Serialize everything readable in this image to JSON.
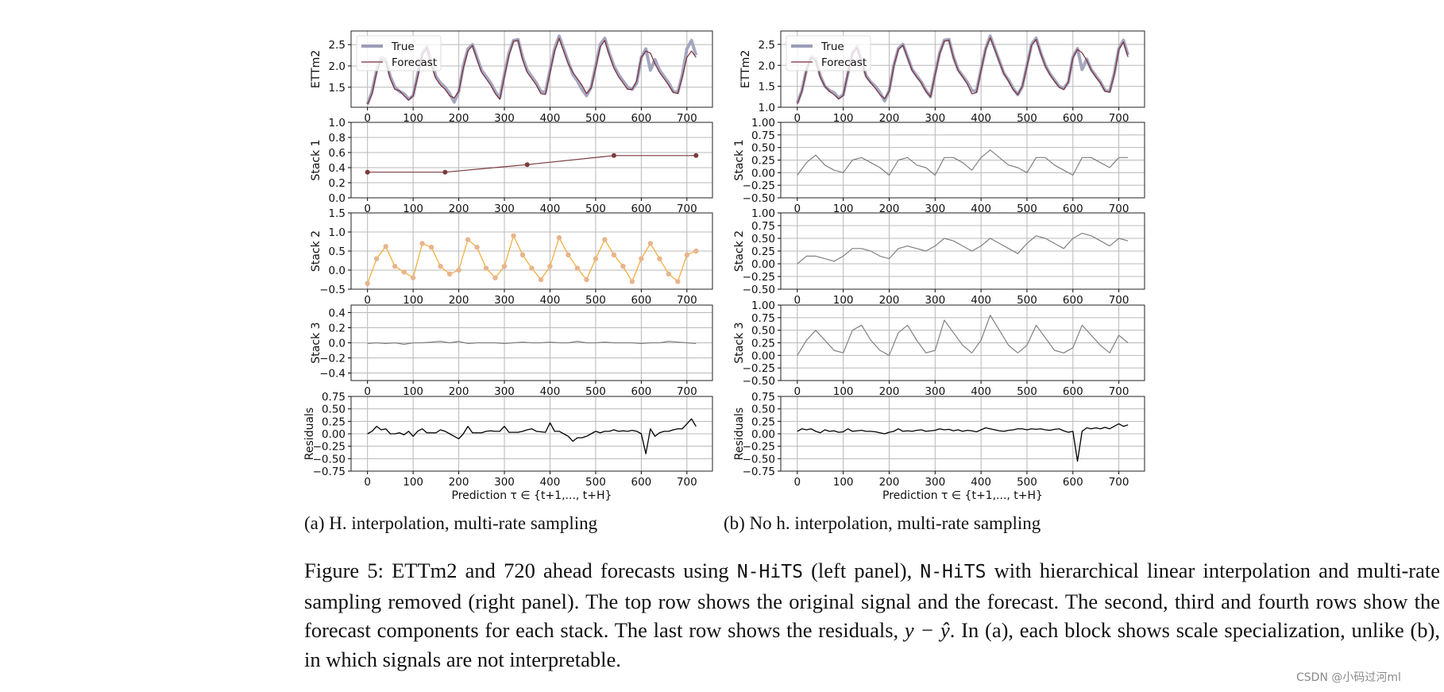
{
  "colors": {
    "true": "#9b9db9",
    "forecast": "#7a2f37",
    "stack1": "#7b3a3c",
    "stack2_line": "#f6a832",
    "stack2_marker": "#e6b58e",
    "stack_gray": "#808080",
    "residual": "#000000",
    "grid": "#b8b8b8"
  },
  "chart_data": [
    {
      "panel": "a",
      "row": 1,
      "type": "line",
      "ylabel": "ETTm2",
      "yticks": [
        "1.5",
        "2.0",
        "2.5"
      ],
      "ylim": [
        1.03,
        2.82
      ],
      "xlim": [
        -36,
        756
      ],
      "xticks": [
        "0",
        "100",
        "200",
        "300",
        "400",
        "500",
        "600",
        "700"
      ],
      "grid": true,
      "legend": "top-left",
      "series": [
        {
          "name": "True",
          "x_step": 10,
          "values": [
            1.1,
            1.4,
            1.9,
            2.2,
            2.15,
            1.75,
            1.5,
            1.4,
            1.35,
            1.22,
            1.3,
            1.8,
            2.3,
            2.45,
            2.1,
            1.75,
            1.6,
            1.5,
            1.35,
            1.15,
            1.4,
            2.0,
            2.4,
            2.5,
            2.2,
            1.9,
            1.75,
            1.6,
            1.4,
            1.25,
            1.8,
            2.3,
            2.6,
            2.62,
            2.2,
            1.9,
            1.75,
            1.6,
            1.4,
            1.38,
            1.9,
            2.4,
            2.7,
            2.4,
            2.1,
            1.8,
            1.65,
            1.45,
            1.3,
            1.5,
            2.0,
            2.5,
            2.65,
            2.3,
            2.0,
            1.8,
            1.65,
            1.5,
            1.45,
            1.6,
            2.2,
            2.4,
            1.9,
            2.15,
            1.9,
            1.75,
            1.6,
            1.4,
            1.38,
            1.8,
            2.4,
            2.6,
            2.25
          ]
        },
        {
          "name": "Forecast",
          "x_step": 10,
          "values": [
            1.1,
            1.35,
            1.85,
            2.15,
            2.1,
            1.7,
            1.45,
            1.42,
            1.3,
            1.2,
            1.3,
            1.75,
            2.25,
            2.42,
            2.0,
            1.7,
            1.55,
            1.45,
            1.3,
            1.25,
            1.4,
            1.95,
            2.35,
            2.48,
            2.15,
            1.85,
            1.7,
            1.55,
            1.35,
            1.22,
            1.75,
            2.25,
            2.58,
            2.6,
            2.15,
            1.85,
            1.7,
            1.55,
            1.35,
            1.33,
            1.85,
            2.35,
            2.65,
            2.35,
            2.05,
            1.85,
            1.7,
            1.55,
            1.35,
            1.48,
            1.95,
            2.45,
            2.6,
            2.25,
            1.95,
            1.75,
            1.6,
            1.45,
            1.45,
            1.65,
            2.2,
            2.35,
            2.3,
            2.05,
            1.85,
            1.7,
            1.55,
            1.38,
            1.35,
            1.75,
            2.2,
            2.35,
            2.2
          ]
        }
      ]
    },
    {
      "panel": "a",
      "row": 2,
      "type": "line",
      "ylabel": "Stack 1",
      "yticks": [
        "0.0",
        "0.2",
        "0.4",
        "0.6",
        "0.8",
        "1.0"
      ],
      "ylim": [
        0,
        1
      ],
      "xlim": [
        -36,
        756
      ],
      "xticks": [
        "0",
        "100",
        "200",
        "300",
        "400",
        "500",
        "600",
        "700"
      ],
      "grid": true,
      "series": [
        {
          "x": [
            0,
            170,
            350,
            540,
            720
          ],
          "values": [
            0.34,
            0.34,
            0.44,
            0.56,
            0.56
          ],
          "markers": true
        }
      ]
    },
    {
      "panel": "a",
      "row": 3,
      "type": "line",
      "ylabel": "Stack 2",
      "yticks": [
        "−0.5",
        "0.0",
        "0.5",
        "1.0",
        "1.5"
      ],
      "ylim": [
        -0.5,
        1.5
      ],
      "xlim": [
        -36,
        756
      ],
      "xticks": [
        "0",
        "100",
        "200",
        "300",
        "400",
        "500",
        "600",
        "700"
      ],
      "grid": true,
      "series": [
        {
          "x_step": 20,
          "markers": true,
          "values": [
            -0.35,
            0.3,
            0.62,
            0.1,
            -0.05,
            -0.2,
            0.7,
            0.6,
            0.1,
            -0.1,
            0.0,
            0.8,
            0.6,
            0.05,
            -0.2,
            0.1,
            0.9,
            0.4,
            0.05,
            -0.25,
            0.1,
            0.85,
            0.4,
            0.05,
            -0.25,
            0.3,
            0.8,
            0.4,
            0.1,
            -0.3,
            0.3,
            0.7,
            0.3,
            -0.1,
            -0.3,
            0.4,
            0.5
          ]
        }
      ]
    },
    {
      "panel": "a",
      "row": 4,
      "type": "line",
      "ylabel": "Stack 3",
      "yticks": [
        "−0.4",
        "−0.2",
        "0.0",
        "0.2",
        "0.4"
      ],
      "ylim": [
        -0.5,
        0.5
      ],
      "xlim": [
        -36,
        756
      ],
      "xticks": [
        "0",
        "100",
        "200",
        "300",
        "400",
        "500",
        "600",
        "700"
      ],
      "grid": true,
      "series": [
        {
          "x_step": 20,
          "values": [
            -0.01,
            0.0,
            -0.01,
            0.0,
            -0.02,
            0.0,
            0.0,
            0.01,
            0.02,
            0.0,
            0.02,
            -0.01,
            0.0,
            0.0,
            0.0,
            -0.01,
            0.0,
            0.01,
            0.0,
            0.0,
            0.01,
            0.0,
            0.0,
            0.02,
            0.0,
            0.0,
            0.01,
            0.0,
            0.0,
            0.0,
            -0.01,
            0.0,
            0.0,
            0.02,
            0.01,
            0.0,
            -0.01
          ]
        }
      ]
    },
    {
      "panel": "a",
      "row": 5,
      "type": "line",
      "ylabel": "Residuals",
      "xlabel": "Prediction τ ∈ {t+1,..., t+H}",
      "yticks": [
        "−0.75",
        "−0.50",
        "−0.25",
        "0.00",
        "0.25",
        "0.50",
        "0.75"
      ],
      "ylim": [
        -0.75,
        0.75
      ],
      "xlim": [
        -36,
        756
      ],
      "xticks": [
        "0",
        "100",
        "200",
        "300",
        "400",
        "500",
        "600",
        "700"
      ],
      "grid": true,
      "series": [
        {
          "x_step": 10,
          "values": [
            0.0,
            0.05,
            0.15,
            0.08,
            0.1,
            0.0,
            0.0,
            0.02,
            -0.02,
            0.05,
            -0.05,
            0.05,
            0.1,
            0.02,
            0.02,
            0.02,
            0.08,
            0.05,
            0.0,
            -0.05,
            -0.1,
            0.0,
            0.15,
            0.02,
            0.02,
            0.02,
            0.05,
            0.06,
            0.05,
            0.05,
            0.15,
            0.03,
            0.03,
            0.03,
            0.05,
            0.08,
            0.1,
            0.05,
            0.04,
            0.03,
            0.22,
            0.05,
            0.05,
            0.0,
            -0.05,
            -0.15,
            -0.08,
            -0.08,
            -0.05,
            0.0,
            0.05,
            0.02,
            0.05,
            0.05,
            0.08,
            0.05,
            0.06,
            0.05,
            0.07,
            0.05,
            0.0,
            -0.4,
            0.1,
            -0.05,
            0.02,
            0.05,
            0.05,
            0.08,
            0.1,
            0.1,
            0.2,
            0.3,
            0.15
          ]
        }
      ]
    },
    {
      "panel": "b",
      "row": 1,
      "type": "line",
      "ylabel": "ETTm2",
      "yticks": [
        "1.0",
        "1.5",
        "2.0",
        "2.5"
      ],
      "ylim": [
        1.0,
        2.82
      ],
      "xlim": [
        -36,
        756
      ],
      "xticks": [
        "0",
        "100",
        "200",
        "300",
        "400",
        "500",
        "600",
        "700"
      ],
      "grid": true,
      "legend": "top-left",
      "series": [
        {
          "name": "True",
          "x_step": 10,
          "values": [
            1.1,
            1.4,
            1.9,
            2.2,
            2.15,
            1.75,
            1.5,
            1.4,
            1.35,
            1.22,
            1.3,
            1.8,
            2.3,
            2.45,
            2.1,
            1.75,
            1.6,
            1.5,
            1.35,
            1.15,
            1.4,
            2.0,
            2.4,
            2.5,
            2.2,
            1.9,
            1.75,
            1.6,
            1.4,
            1.25,
            1.8,
            2.3,
            2.6,
            2.62,
            2.2,
            1.9,
            1.75,
            1.6,
            1.4,
            1.38,
            1.9,
            2.4,
            2.7,
            2.4,
            2.1,
            1.8,
            1.65,
            1.45,
            1.3,
            1.5,
            2.0,
            2.5,
            2.65,
            2.3,
            2.0,
            1.8,
            1.65,
            1.5,
            1.45,
            1.6,
            2.2,
            2.4,
            1.9,
            2.15,
            1.9,
            1.75,
            1.6,
            1.4,
            1.38,
            1.8,
            2.4,
            2.6,
            2.25
          ]
        },
        {
          "name": "Forecast",
          "x_step": 10,
          "values": [
            1.08,
            1.38,
            1.88,
            2.18,
            2.12,
            1.72,
            1.5,
            1.38,
            1.3,
            1.2,
            1.28,
            1.8,
            2.28,
            2.42,
            2.08,
            1.72,
            1.58,
            1.45,
            1.3,
            1.2,
            1.38,
            1.98,
            2.38,
            2.48,
            2.18,
            1.88,
            1.72,
            1.58,
            1.38,
            1.25,
            1.78,
            2.28,
            2.58,
            2.6,
            2.18,
            1.88,
            1.72,
            1.56,
            1.32,
            1.35,
            1.88,
            2.38,
            2.66,
            2.38,
            2.08,
            1.8,
            1.62,
            1.42,
            1.3,
            1.5,
            1.98,
            2.48,
            2.62,
            2.28,
            1.98,
            1.78,
            1.62,
            1.48,
            1.42,
            1.6,
            2.18,
            2.38,
            2.3,
            2.12,
            1.88,
            1.72,
            1.58,
            1.38,
            1.36,
            1.78,
            2.38,
            2.56,
            2.2
          ]
        }
      ]
    },
    {
      "panel": "b",
      "row": 2,
      "type": "line",
      "ylabel": "Stack 1",
      "yticks": [
        "−0.50",
        "−0.25",
        "0.00",
        "0.25",
        "0.50",
        "0.75",
        "1.00"
      ],
      "ylim": [
        -0.5,
        1.0
      ],
      "xlim": [
        -36,
        756
      ],
      "xticks": [
        "0",
        "100",
        "200",
        "300",
        "400",
        "500",
        "600",
        "700"
      ],
      "grid": true,
      "series": [
        {
          "x_step": 20,
          "values": [
            -0.05,
            0.2,
            0.35,
            0.15,
            0.05,
            0.0,
            0.25,
            0.3,
            0.2,
            0.1,
            -0.05,
            0.25,
            0.3,
            0.15,
            0.1,
            -0.05,
            0.3,
            0.3,
            0.2,
            0.05,
            0.3,
            0.45,
            0.3,
            0.15,
            0.1,
            0.0,
            0.3,
            0.3,
            0.15,
            0.05,
            -0.05,
            0.3,
            0.3,
            0.2,
            0.1,
            0.3,
            0.3
          ]
        }
      ]
    },
    {
      "panel": "b",
      "row": 3,
      "type": "line",
      "ylabel": "Stack 2",
      "yticks": [
        "−0.50",
        "−0.25",
        "0.00",
        "0.25",
        "0.50",
        "0.75",
        "1.00"
      ],
      "ylim": [
        -0.5,
        1.0
      ],
      "xlim": [
        -36,
        756
      ],
      "xticks": [
        "0",
        "100",
        "200",
        "300",
        "400",
        "500",
        "600",
        "700"
      ],
      "grid": true,
      "series": [
        {
          "x_step": 20,
          "values": [
            0.0,
            0.15,
            0.15,
            0.1,
            0.05,
            0.15,
            0.3,
            0.3,
            0.25,
            0.15,
            0.1,
            0.3,
            0.35,
            0.3,
            0.25,
            0.35,
            0.5,
            0.45,
            0.35,
            0.25,
            0.35,
            0.5,
            0.4,
            0.3,
            0.2,
            0.4,
            0.55,
            0.5,
            0.4,
            0.3,
            0.5,
            0.6,
            0.55,
            0.45,
            0.35,
            0.5,
            0.45
          ]
        }
      ]
    },
    {
      "panel": "b",
      "row": 4,
      "type": "line",
      "ylabel": "Stack 3",
      "yticks": [
        "−0.50",
        "−0.25",
        "0.00",
        "0.25",
        "0.50",
        "0.75",
        "1.00"
      ],
      "ylim": [
        -0.5,
        1.0
      ],
      "xlim": [
        -36,
        756
      ],
      "xticks": [
        "0",
        "100",
        "200",
        "300",
        "400",
        "500",
        "600",
        "700"
      ],
      "grid": true,
      "series": [
        {
          "x_step": 20,
          "values": [
            0.0,
            0.3,
            0.5,
            0.3,
            0.1,
            0.05,
            0.5,
            0.6,
            0.3,
            0.1,
            0.0,
            0.45,
            0.6,
            0.3,
            0.05,
            0.1,
            0.7,
            0.45,
            0.2,
            0.05,
            0.3,
            0.8,
            0.5,
            0.2,
            0.05,
            0.2,
            0.6,
            0.35,
            0.1,
            0.05,
            0.15,
            0.6,
            0.4,
            0.2,
            0.05,
            0.4,
            0.25
          ]
        }
      ]
    },
    {
      "panel": "b",
      "row": 5,
      "type": "line",
      "ylabel": "Residuals",
      "xlabel": "Prediction τ ∈ {t+1,..., t+H}",
      "yticks": [
        "−0.75",
        "−0.50",
        "−0.25",
        "0.00",
        "0.25",
        "0.50",
        "0.75"
      ],
      "ylim": [
        -0.75,
        0.75
      ],
      "xlim": [
        -36,
        756
      ],
      "xticks": [
        "0",
        "100",
        "200",
        "300",
        "400",
        "500",
        "600",
        "700"
      ],
      "grid": true,
      "series": [
        {
          "x_step": 10,
          "values": [
            0.05,
            0.1,
            0.08,
            0.1,
            0.05,
            0.02,
            0.08,
            0.05,
            0.06,
            0.03,
            0.04,
            0.1,
            0.05,
            0.06,
            0.07,
            0.05,
            0.05,
            0.04,
            0.02,
            0.0,
            0.03,
            0.05,
            0.1,
            0.05,
            0.06,
            0.05,
            0.07,
            0.08,
            0.05,
            0.06,
            0.07,
            0.1,
            0.08,
            0.09,
            0.06,
            0.08,
            0.05,
            0.07,
            0.06,
            0.04,
            0.08,
            0.12,
            0.1,
            0.08,
            0.06,
            0.05,
            0.07,
            0.08,
            0.1,
            0.1,
            0.08,
            0.1,
            0.09,
            0.1,
            0.08,
            0.07,
            0.09,
            0.1,
            0.06,
            0.03,
            0.05,
            -0.55,
            0.05,
            0.12,
            0.1,
            0.12,
            0.1,
            0.13,
            0.1,
            0.15,
            0.2,
            0.15,
            0.18
          ]
        }
      ]
    }
  ],
  "subcaptions": {
    "a": "(a)  H. interpolation, multi-rate sampling",
    "b": "(b)  No h. interpolation, multi-rate sampling"
  },
  "caption": {
    "p1": "Figure 5: ETTm2 and 720 ahead forecasts using ",
    "nhits1": "N-HiTS",
    "p2": " (left panel), ",
    "nhits2": "N-HiTS",
    "p3": " with hierarchical linear interpolation and multi-rate sampling removed (right panel). The top row shows the original signal and the forecast. The second, third and fourth rows show the forecast components for each stack. The last row shows the residuals, ",
    "math": "y − ŷ",
    "p4": ". In (a), each block shows scale specialization, unlike (b), in which signals are not interpretable."
  },
  "watermark": "CSDN @小码过河ml"
}
